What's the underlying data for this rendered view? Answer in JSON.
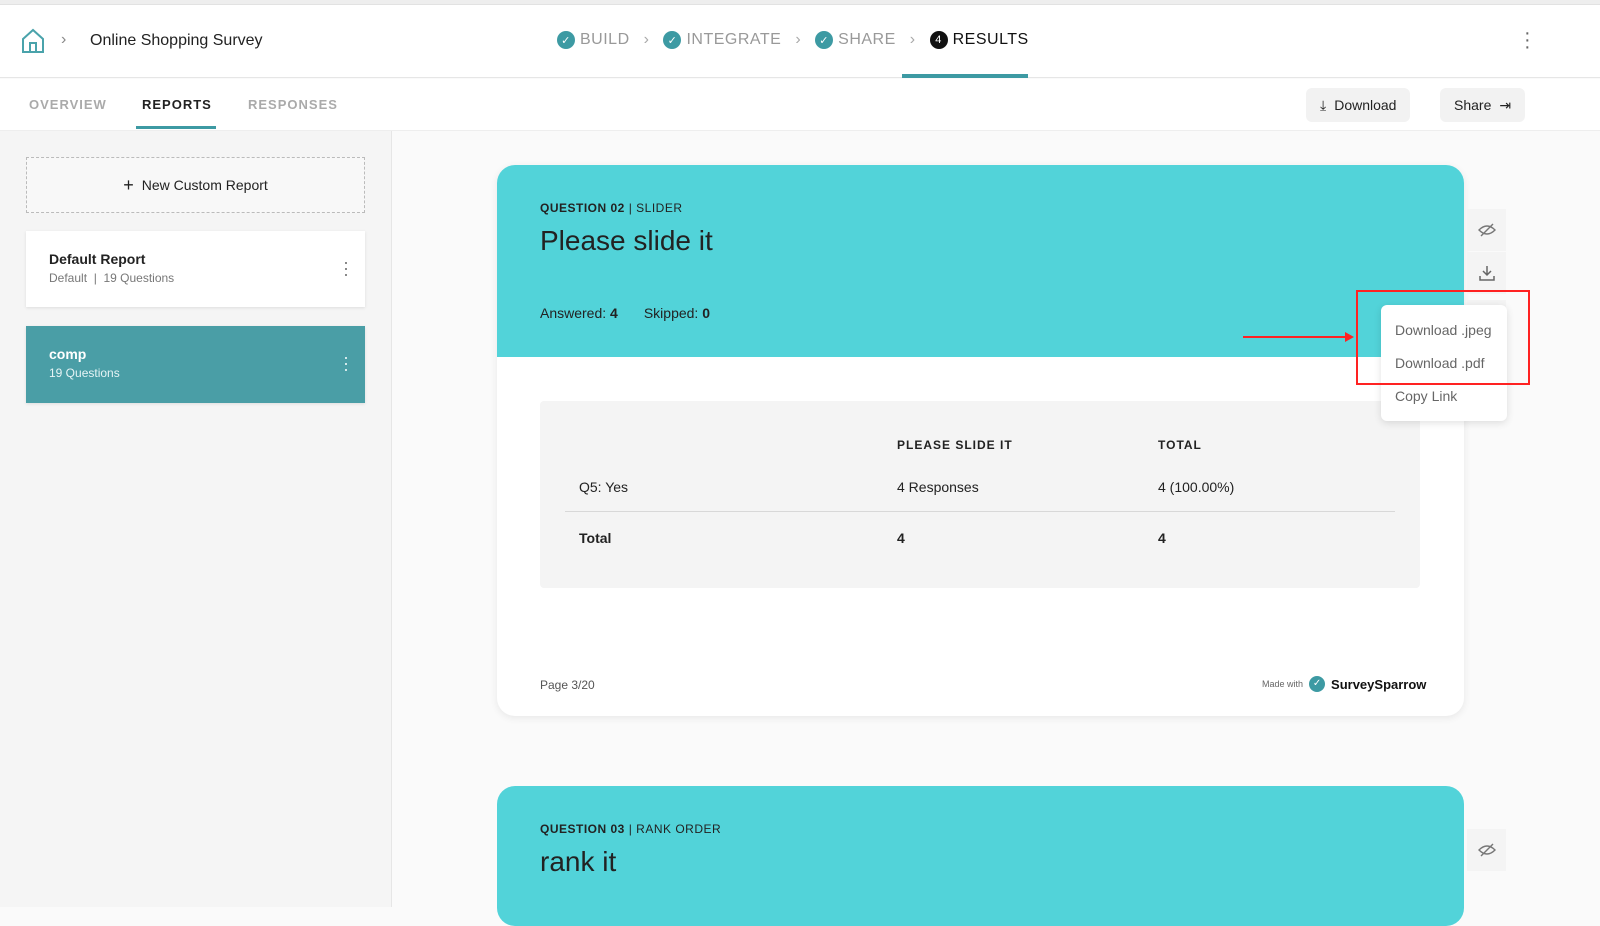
{
  "header": {
    "survey_title": "Online Shopping Survey",
    "steps": [
      {
        "label": "BUILD",
        "icon": "check-icon"
      },
      {
        "label": "INTEGRATE",
        "icon": "check-icon"
      },
      {
        "label": "SHARE",
        "icon": "check-icon"
      },
      {
        "label": "RESULTS",
        "number": "4"
      }
    ]
  },
  "tabs": [
    {
      "label": "OVERVIEW"
    },
    {
      "label": "REPORTS"
    },
    {
      "label": "RESPONSES"
    }
  ],
  "actions": {
    "download": "Download",
    "share": "Share"
  },
  "sidebar": {
    "new_report": "New Custom Report",
    "reports": [
      {
        "name": "Default Report",
        "sub": "Default  |  19 Questions"
      },
      {
        "name": "comp",
        "sub": "19 Questions"
      }
    ]
  },
  "card": {
    "qnum": "QUESTION 02",
    "qtype": "| SLIDER",
    "title": "Please slide it",
    "answered_label": "Answered:",
    "answered": "4",
    "skipped_label": "Skipped:",
    "skipped": "0",
    "table": {
      "headers": [
        "PLEASE SLIDE IT",
        "TOTAL"
      ],
      "row": [
        "Q5: Yes",
        "4 Responses",
        "4 (100.00%)"
      ],
      "total": [
        "Total",
        "4",
        "4"
      ]
    },
    "page": "Page 3/20",
    "made_with": "Made with",
    "brand": "SurveySparrow"
  },
  "menu": [
    "Download .jpeg",
    "Download .pdf",
    "Copy Link"
  ],
  "card2": {
    "qnum": "QUESTION 03",
    "qtype": "| RANK ORDER",
    "title": "rank it"
  },
  "colors": {
    "accent": "#3d9aa3",
    "card_header": "#52d3d9",
    "annotation": "#ff2222"
  }
}
